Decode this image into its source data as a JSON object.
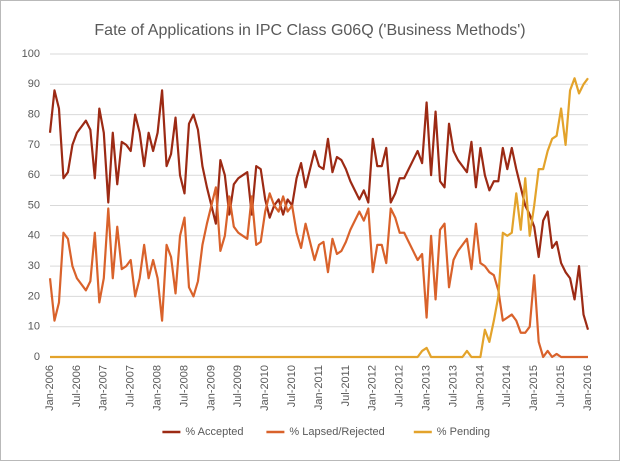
{
  "chart_data": {
    "type": "line",
    "title": "Fate of Applications in IPC Class G06Q ('Business Methods')",
    "categories": [
      "Jan-2006",
      null,
      null,
      null,
      null,
      null,
      "Jul-2006",
      null,
      null,
      null,
      null,
      null,
      "Jan-2007",
      null,
      null,
      null,
      null,
      null,
      "Jul-2007",
      null,
      null,
      null,
      null,
      null,
      "Jan-2008",
      null,
      null,
      null,
      null,
      null,
      "Jul-2008",
      null,
      null,
      null,
      null,
      null,
      "Jan-2009",
      null,
      null,
      null,
      null,
      null,
      "Jul-2009",
      null,
      null,
      null,
      null,
      null,
      "Jan-2010",
      null,
      null,
      null,
      null,
      null,
      "Jul-2010",
      null,
      null,
      null,
      null,
      null,
      "Jan-2011",
      null,
      null,
      null,
      null,
      null,
      "Jul-2011",
      null,
      null,
      null,
      null,
      null,
      "Jan-2012",
      null,
      null,
      null,
      null,
      null,
      "Jul-2012",
      null,
      null,
      null,
      null,
      null,
      "Jan-2013",
      null,
      null,
      null,
      null,
      null,
      "Jul-2013",
      null,
      null,
      null,
      null,
      null,
      "Jan-2014",
      null,
      null,
      null,
      null,
      null,
      "Jul-2014",
      null,
      null,
      null,
      null,
      null,
      "Jan-2015",
      null,
      null,
      null,
      null,
      null,
      "Jul-2015",
      null,
      null,
      null,
      null,
      null,
      "Jan-2016"
    ],
    "series": [
      {
        "name": "% Accepted",
        "color": "#9c2a14",
        "values": [
          74,
          88,
          82,
          59,
          61,
          70,
          74,
          76,
          78,
          75,
          59,
          82,
          74,
          51,
          74,
          57,
          71,
          70,
          68,
          80,
          74,
          63,
          74,
          68,
          74,
          88,
          63,
          67,
          79,
          60,
          54,
          77,
          80,
          75,
          63,
          56,
          50,
          44,
          65,
          60,
          47,
          57,
          59,
          60,
          61,
          47,
          63,
          62,
          52,
          46,
          50,
          52,
          47,
          52,
          50,
          59,
          64,
          56,
          62,
          68,
          63,
          62,
          72,
          61,
          66,
          65,
          62,
          58,
          55,
          52,
          55,
          51,
          72,
          63,
          63,
          69,
          51,
          54,
          59,
          59,
          62,
          65,
          68,
          64,
          84,
          60,
          81,
          58,
          56,
          77,
          68,
          65,
          63,
          61,
          71,
          56,
          69,
          60,
          55,
          58,
          58,
          69,
          62,
          69,
          62,
          56,
          50,
          47,
          43,
          33,
          45,
          48,
          36,
          38,
          31,
          28,
          26,
          19,
          30,
          14,
          9
        ]
      },
      {
        "name": "% Lapsed/Rejected",
        "color": "#d9622b",
        "values": [
          26,
          12,
          18,
          41,
          39,
          30,
          26,
          24,
          22,
          25,
          41,
          18,
          26,
          49,
          26,
          43,
          29,
          30,
          32,
          20,
          26,
          37,
          26,
          32,
          26,
          12,
          37,
          33,
          21,
          40,
          46,
          23,
          20,
          25,
          37,
          44,
          50,
          56,
          35,
          40,
          53,
          43,
          41,
          40,
          39,
          53,
          37,
          38,
          48,
          54,
          50,
          48,
          53,
          48,
          50,
          41,
          36,
          44,
          38,
          32,
          37,
          38,
          28,
          39,
          34,
          35,
          38,
          42,
          45,
          48,
          45,
          49,
          28,
          37,
          37,
          31,
          49,
          46,
          41,
          41,
          38,
          35,
          32,
          34,
          13,
          40,
          19,
          42,
          44,
          23,
          32,
          35,
          37,
          39,
          29,
          44,
          31,
          30,
          28,
          27,
          22,
          12,
          13,
          14,
          12,
          8,
          8,
          10,
          27,
          5,
          0,
          2,
          0,
          1,
          0,
          0,
          0,
          0,
          0,
          0,
          0
        ]
      },
      {
        "name": "% Pending",
        "color": "#e3a32b",
        "values": [
          0,
          0,
          0,
          0,
          0,
          0,
          0,
          0,
          0,
          0,
          0,
          0,
          0,
          0,
          0,
          0,
          0,
          0,
          0,
          0,
          0,
          0,
          0,
          0,
          0,
          0,
          0,
          0,
          0,
          0,
          0,
          0,
          0,
          0,
          0,
          0,
          0,
          0,
          0,
          0,
          0,
          0,
          0,
          0,
          0,
          0,
          0,
          0,
          0,
          0,
          0,
          0,
          0,
          0,
          0,
          0,
          0,
          0,
          0,
          0,
          0,
          0,
          0,
          0,
          0,
          0,
          0,
          0,
          0,
          0,
          0,
          0,
          0,
          0,
          0,
          0,
          0,
          0,
          0,
          0,
          0,
          0,
          0,
          2,
          3,
          0,
          0,
          0,
          0,
          0,
          0,
          0,
          0,
          2,
          0,
          0,
          0,
          9,
          5,
          12,
          20,
          41,
          40,
          41,
          54,
          42,
          59,
          40,
          50,
          62,
          62,
          68,
          72,
          73,
          82,
          70,
          88,
          92,
          87,
          90,
          92
        ]
      }
    ],
    "ylim": [
      0,
      100
    ],
    "yticks": [
      0,
      10,
      20,
      30,
      40,
      50,
      60,
      70,
      80,
      90,
      100
    ],
    "grid": true,
    "legend": "bottom"
  }
}
